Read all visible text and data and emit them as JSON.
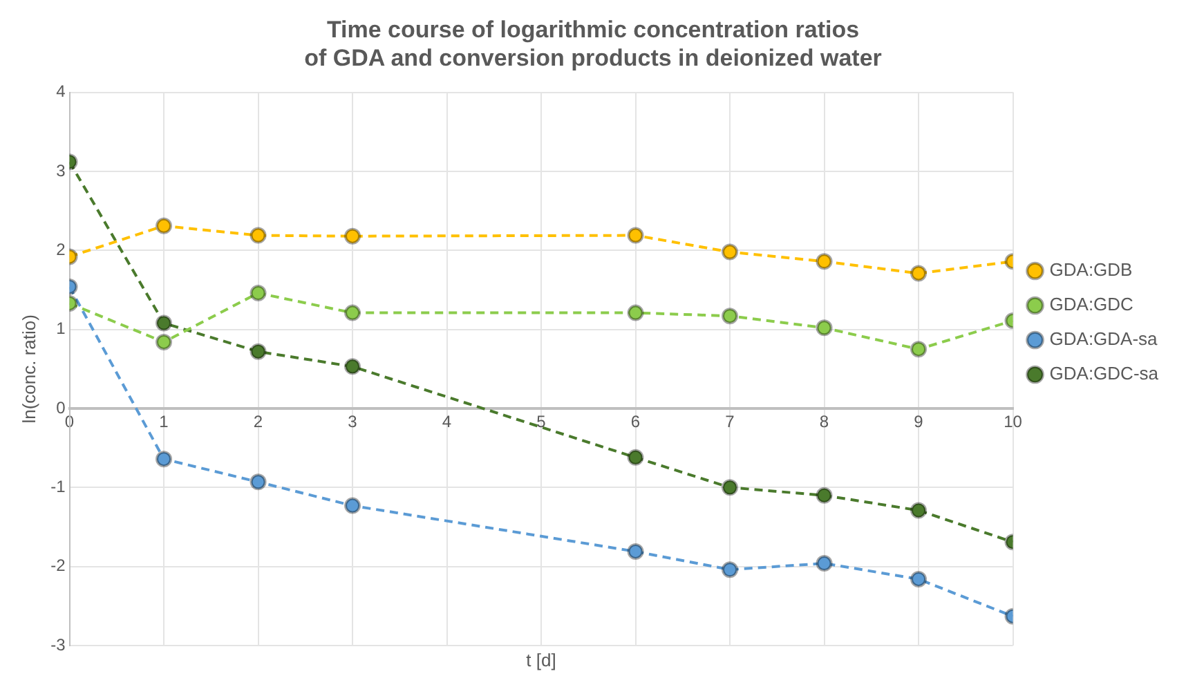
{
  "chart_data": {
    "type": "line",
    "title": "Time course of logarithmic concentration ratios of GDA and conversion products in deionized water",
    "xlabel": "t [d]",
    "ylabel": "ln(conc. ratio)",
    "x": [
      0,
      1,
      2,
      3,
      6,
      7,
      8,
      9,
      10
    ],
    "series": [
      {
        "name": "GDA:GDB",
        "color": "#ffc000",
        "values": [
          1.92,
          2.31,
          2.19,
          2.18,
          2.19,
          1.98,
          1.86,
          1.71,
          1.86
        ]
      },
      {
        "name": "GDA:GDC",
        "color": "#8ccc4c",
        "values": [
          1.33,
          0.84,
          1.46,
          1.21,
          1.21,
          1.17,
          1.02,
          0.75,
          1.11
        ]
      },
      {
        "name": "GDA:GDA-sa",
        "color": "#5b9bd5",
        "values": [
          1.54,
          -0.64,
          -0.93,
          -1.23,
          -1.81,
          -2.04,
          -1.96,
          -2.16,
          -2.63
        ]
      },
      {
        "name": "GDA:GDC-sa",
        "color": "#4a7a2c",
        "values": [
          3.12,
          1.08,
          0.72,
          0.53,
          -0.62,
          -1.0,
          -1.1,
          -1.29,
          -1.69
        ]
      }
    ],
    "xlim": [
      0,
      10
    ],
    "xticks": [
      0,
      1,
      2,
      3,
      4,
      5,
      6,
      7,
      8,
      9,
      10
    ],
    "ylim": [
      -3,
      4
    ],
    "yticks": [
      -3,
      -2,
      -1,
      0,
      1,
      2,
      3,
      4
    ],
    "grid": true,
    "legend": "right",
    "marker": "circle",
    "line_style": "dashed"
  }
}
